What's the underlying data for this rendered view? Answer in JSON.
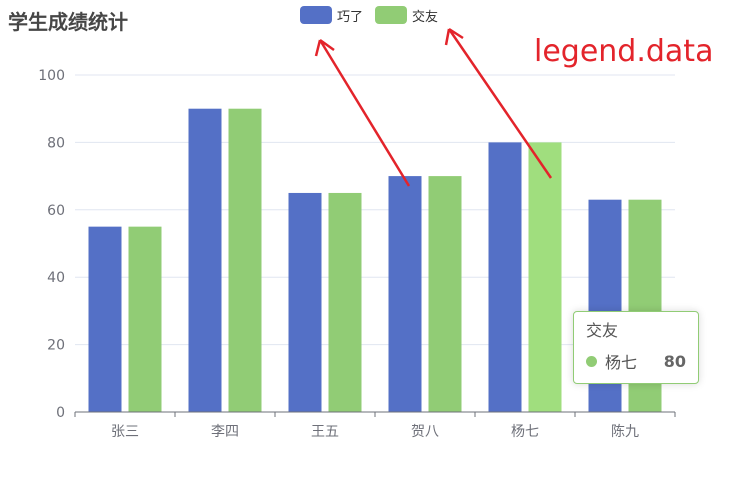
{
  "title": "学生成绩统计",
  "annotation": "legend.data",
  "legend": [
    {
      "name": "巧了",
      "color": "#5470c6"
    },
    {
      "name": "交友",
      "color": "#91cc75"
    }
  ],
  "tooltip": {
    "title": "交友",
    "name": "杨七",
    "value": "80",
    "color": "#91cc75"
  },
  "chart_data": {
    "type": "bar",
    "categories": [
      "张三",
      "李四",
      "王五",
      "贺八",
      "杨七",
      "陈九"
    ],
    "series": [
      {
        "name": "巧了",
        "values": [
          55,
          90,
          65,
          70,
          80,
          63
        ],
        "color": "#5470c6"
      },
      {
        "name": "交友",
        "values": [
          55,
          90,
          65,
          70,
          80,
          63
        ],
        "color": "#91cc75"
      }
    ],
    "yticks": [
      0,
      20,
      40,
      60,
      80,
      100
    ],
    "ylim": [
      0,
      100
    ],
    "grid": true,
    "highlight": {
      "series": 1,
      "index": 4,
      "color": "#a0de7e"
    }
  }
}
